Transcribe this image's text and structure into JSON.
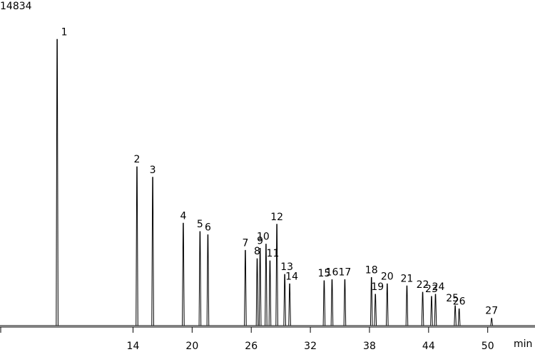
{
  "chart_data": {
    "type": "line",
    "y_max_label": "14834",
    "x_unit_label": "min",
    "xlim": [
      0.5,
      54.8
    ],
    "ylim": [
      0,
      14834
    ],
    "x_ticks": [
      14,
      20,
      26,
      32,
      38,
      44,
      50
    ],
    "grid": false,
    "legend": "none",
    "peaks": [
      {
        "label": "1",
        "x": 6.3,
        "y": 13700
      },
      {
        "label": "2",
        "x": 14.4,
        "y": 7600
      },
      {
        "label": "3",
        "x": 16.0,
        "y": 7100
      },
      {
        "label": "4",
        "x": 19.1,
        "y": 4900
      },
      {
        "label": "5",
        "x": 20.8,
        "y": 4500
      },
      {
        "label": "6",
        "x": 21.6,
        "y": 4350
      },
      {
        "label": "7",
        "x": 25.4,
        "y": 3600
      },
      {
        "label": "8",
        "x": 26.6,
        "y": 3200
      },
      {
        "label": "9",
        "x": 26.9,
        "y": 3700
      },
      {
        "label": "10",
        "x": 27.5,
        "y": 3900
      },
      {
        "label": "11",
        "x": 27.9,
        "y": 3100
      },
      {
        "label": "12",
        "x": 28.6,
        "y": 4850
      },
      {
        "label": "13",
        "x": 29.4,
        "y": 2450
      },
      {
        "label": "14",
        "x": 29.9,
        "y": 2000
      },
      {
        "label": "15",
        "x": 33.4,
        "y": 2150
      },
      {
        "label": "16",
        "x": 34.2,
        "y": 2200
      },
      {
        "label": "17",
        "x": 35.5,
        "y": 2200
      },
      {
        "label": "18",
        "x": 38.2,
        "y": 2300
      },
      {
        "label": "19",
        "x": 38.6,
        "y": 1500
      },
      {
        "label": "20",
        "x": 39.8,
        "y": 2000
      },
      {
        "label": "21",
        "x": 41.8,
        "y": 1900
      },
      {
        "label": "22",
        "x": 43.4,
        "y": 1600
      },
      {
        "label": "23",
        "x": 44.3,
        "y": 1400
      },
      {
        "label": "24",
        "x": 44.7,
        "y": 1500
      },
      {
        "label": "25",
        "x": 46.7,
        "y": 950
      },
      {
        "label": "26",
        "x": 47.1,
        "y": 800
      },
      {
        "label": "27",
        "x": 50.4,
        "y": 350
      }
    ]
  }
}
